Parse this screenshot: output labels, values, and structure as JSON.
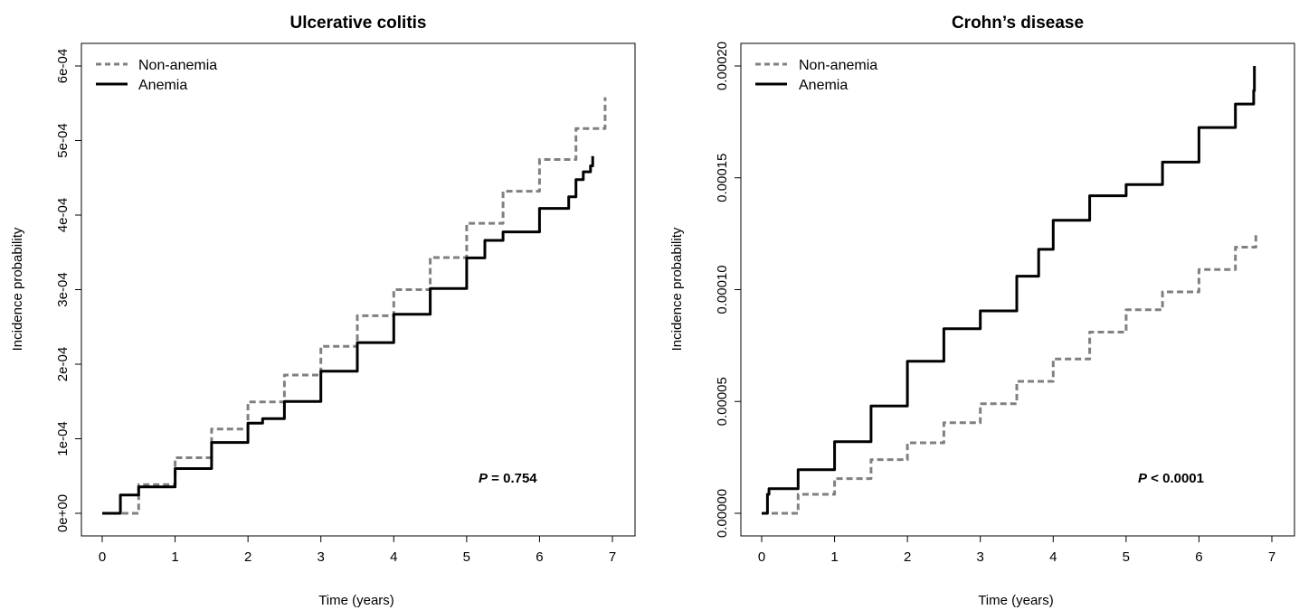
{
  "chart_data": [
    {
      "type": "line",
      "title": "Ulcerative colitis",
      "xlabel": "Time (years)",
      "ylabel": "Incidence probability",
      "xlim": [
        0,
        7
      ],
      "ylim": [
        0,
        0.0006
      ],
      "x_ticks": [
        0,
        1,
        2,
        3,
        4,
        5,
        6,
        7
      ],
      "x_tick_labels": [
        "0",
        "1",
        "2",
        "3",
        "4",
        "5",
        "6",
        "7"
      ],
      "y_ticks": [
        0,
        0.0001,
        0.0002,
        0.0003,
        0.0004,
        0.0005,
        0.0006
      ],
      "y_tick_labels": [
        "0e+00",
        "1e-04",
        "2e-04",
        "3e-04",
        "4e-04",
        "5e-04",
        "6e-04"
      ],
      "legend": {
        "position": "top-left"
      },
      "grid": false,
      "annotation": {
        "prefix": "P",
        "text": " = 0.754"
      },
      "series": [
        {
          "name": "Non-anemia",
          "color": "#808080",
          "style": "dashed",
          "x": [
            0,
            0.5,
            1,
            1.5,
            2,
            2.5,
            3,
            3.5,
            4,
            4.5,
            5,
            5.5,
            6,
            6.5,
            6.9
          ],
          "y": [
            0,
            3.85e-05,
            7.45e-05,
            0.000113,
            0.0001495,
            0.0001855,
            0.000224,
            0.000265,
            0.0003,
            0.000343,
            0.000389,
            0.000432,
            0.0004745,
            0.000516,
            0.000558
          ]
        },
        {
          "name": "Anemia",
          "color": "#000000",
          "style": "solid",
          "x": [
            0,
            0.25,
            0.5,
            1,
            1.5,
            2,
            2.2,
            2.5,
            3,
            3.5,
            4,
            4.5,
            5,
            5.25,
            5.5,
            6,
            6.4,
            6.5,
            6.6,
            6.7,
            6.73
          ],
          "y": [
            0,
            2.45e-05,
            3.55e-05,
            6e-05,
            9.5e-05,
            0.000121,
            0.000127,
            0.00015,
            0.0001905,
            0.000229,
            0.000267,
            0.0003015,
            0.0003425,
            0.000366,
            0.0003775,
            0.000409,
            0.0004245,
            0.0004475,
            0.000458,
            0.000466,
            0.000479
          ]
        }
      ]
    },
    {
      "type": "line",
      "title": "Crohn’s disease",
      "xlabel": "Time (years)",
      "ylabel": "Incidence probability",
      "xlim": [
        0,
        7
      ],
      "ylim": [
        0,
        0.0002
      ],
      "x_ticks": [
        0,
        1,
        2,
        3,
        4,
        5,
        6,
        7
      ],
      "x_tick_labels": [
        "0",
        "1",
        "2",
        "3",
        "4",
        "5",
        "6",
        "7"
      ],
      "y_ticks": [
        0,
        5e-05,
        0.0001,
        0.00015,
        0.0002
      ],
      "y_tick_labels": [
        "0.00000",
        "0.00005",
        "0.00010",
        "0.00015",
        "0.00020"
      ],
      "legend": {
        "position": "top-left"
      },
      "grid": false,
      "annotation": {
        "prefix": "P",
        "text": " < 0.0001"
      },
      "series": [
        {
          "name": "Non-anemia",
          "color": "#808080",
          "style": "dashed",
          "x": [
            0,
            0.5,
            1,
            1.5,
            2,
            2.5,
            3,
            3.5,
            4,
            4.5,
            5,
            5.5,
            6,
            6.5,
            6.78
          ],
          "y": [
            0,
            8.5e-06,
            1.55e-05,
            2.4e-05,
            3.15e-05,
            4.05e-05,
            4.9e-05,
            5.9e-05,
            6.9e-05,
            8.1e-05,
            9.1e-05,
            9.9e-05,
            0.000109,
            0.000119,
            0.0001255
          ]
        },
        {
          "name": "Anemia",
          "color": "#000000",
          "style": "solid",
          "x": [
            0,
            0.08,
            0.1,
            0.5,
            1,
            1.5,
            2,
            2.5,
            3,
            3.5,
            3.8,
            4,
            4.5,
            5,
            5.5,
            6,
            6.5,
            6.75,
            6.76
          ],
          "y": [
            0,
            8.5e-06,
            1.1e-05,
            1.95e-05,
            3.2e-05,
            4.8e-05,
            6.8e-05,
            8.25e-05,
            9.05e-05,
            0.000106,
            0.000118,
            0.000131,
            0.000142,
            0.000147,
            0.000157,
            0.0001725,
            0.000183,
            0.000189,
            0.0002
          ]
        }
      ]
    }
  ]
}
